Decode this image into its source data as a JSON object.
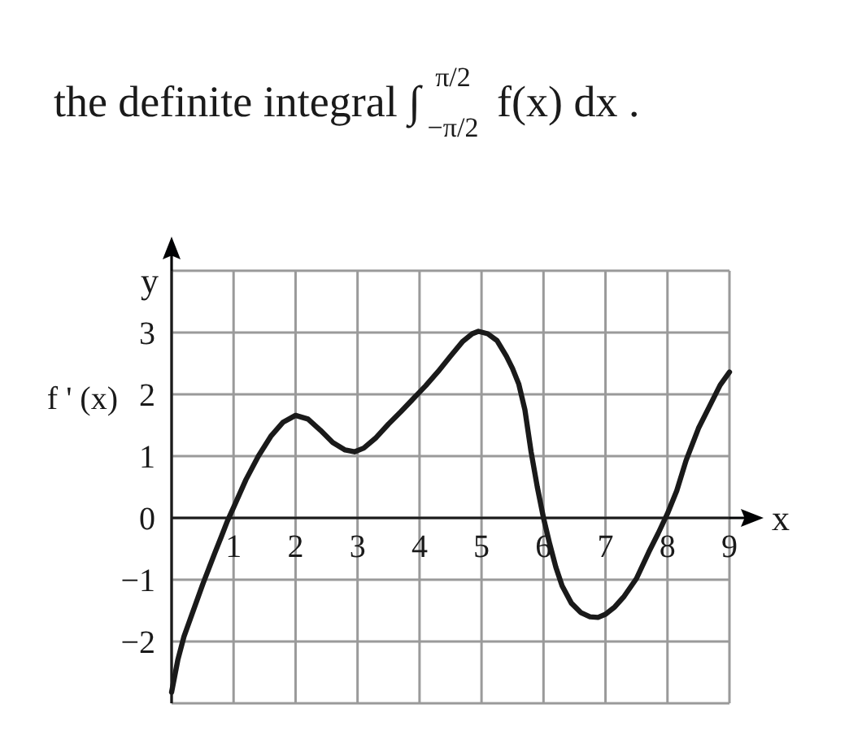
{
  "chart_data": {
    "type": "line",
    "title": "the definite integral ∫$^{π/2}$$_{−π/2}$ f(x) dx .",
    "xlabel": "x",
    "ylabel": "y",
    "annotations": [
      "f ' (x)"
    ],
    "x": [
      0,
      0.1,
      0.2,
      0.3,
      0.4,
      0.5,
      0.6,
      0.7,
      0.8,
      0.9,
      1.0,
      1.2,
      1.4,
      1.6,
      1.8,
      2.0,
      2.2,
      2.4,
      2.6,
      2.8,
      2.95,
      3.1,
      3.3,
      3.5,
      3.7,
      3.9,
      4.1,
      4.3,
      4.5,
      4.7,
      4.85,
      4.95,
      5.1,
      5.25,
      5.4,
      5.5,
      5.6,
      5.7,
      5.8,
      5.9,
      6.0,
      6.1,
      6.2,
      6.3,
      6.45,
      6.6,
      6.75,
      6.88,
      7.0,
      7.15,
      7.3,
      7.5,
      7.7,
      7.85,
      8.0,
      8.15,
      8.3,
      8.5,
      8.7,
      8.85,
      9.0
    ],
    "series": [
      {
        "color": "#1a1a1a",
        "values": [
          -2.82,
          -2.3,
          -1.92,
          -1.64,
          -1.36,
          -1.08,
          -0.82,
          -0.56,
          -0.31,
          -0.05,
          0.17,
          0.62,
          1.0,
          1.32,
          1.55,
          1.66,
          1.6,
          1.42,
          1.22,
          1.1,
          1.07,
          1.13,
          1.3,
          1.52,
          1.72,
          1.93,
          2.14,
          2.37,
          2.62,
          2.86,
          2.98,
          3.02,
          2.98,
          2.87,
          2.62,
          2.42,
          2.17,
          1.75,
          1.07,
          0.5,
          0.0,
          -0.42,
          -0.8,
          -1.1,
          -1.38,
          -1.53,
          -1.6,
          -1.61,
          -1.56,
          -1.44,
          -1.27,
          -0.98,
          -0.55,
          -0.25,
          0.07,
          0.44,
          0.93,
          1.45,
          1.85,
          2.15,
          2.36
        ]
      }
    ],
    "xlim": [
      0,
      9
    ],
    "ylim": [
      -3,
      4
    ],
    "xticks": [
      {
        "value": 0,
        "label": null
      },
      1,
      2,
      3,
      4,
      5,
      6,
      7,
      8,
      9
    ],
    "yticks": [
      {
        "value": -3,
        "label": null
      },
      {
        "value": -2,
        "label": "−2"
      },
      {
        "value": -1,
        "label": "−1"
      },
      0,
      1,
      2,
      3,
      {
        "value": 4,
        "label": null
      }
    ],
    "grid": true
  }
}
